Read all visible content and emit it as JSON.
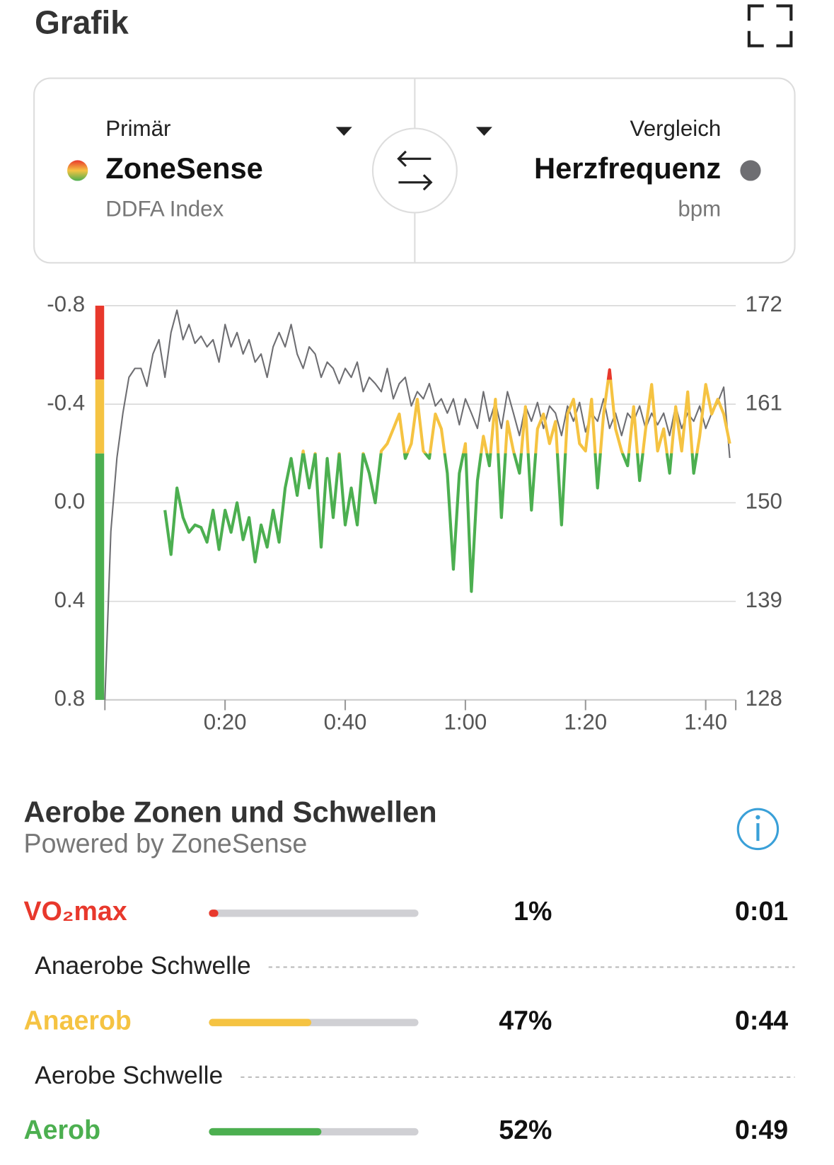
{
  "header": {
    "title": "Grafik"
  },
  "selector": {
    "primary_label": "Primär",
    "compare_label": "Vergleich"
  },
  "chart_data": {
    "type": "line",
    "series": [
      {
        "name": "ZoneSense",
        "unit": "DDFA Index",
        "x": [
          10,
          11,
          12,
          13,
          14,
          15,
          16,
          17,
          18,
          19,
          20,
          21,
          22,
          23,
          24,
          25,
          26,
          27,
          28,
          29,
          30,
          31,
          32,
          33,
          34,
          35,
          36,
          37,
          38,
          39,
          40,
          41,
          42,
          43,
          44,
          45,
          46,
          47,
          48,
          49,
          50,
          51,
          52,
          53,
          54,
          55,
          56,
          57,
          58,
          59,
          60,
          61,
          62,
          63,
          64,
          65,
          66,
          67,
          68,
          69,
          70,
          71,
          72,
          73,
          74,
          75,
          76,
          77,
          78,
          79,
          80,
          81,
          82,
          83,
          84,
          85,
          86,
          87,
          88,
          89,
          90,
          91,
          92,
          93,
          94,
          95,
          96,
          97,
          98,
          99,
          100,
          101,
          102,
          103,
          104
        ],
        "values": [
          0.03,
          0.21,
          -0.06,
          0.06,
          0.12,
          0.09,
          0.1,
          0.16,
          0.03,
          0.19,
          0.03,
          0.12,
          0.0,
          0.15,
          0.06,
          0.24,
          0.09,
          0.18,
          0.03,
          0.16,
          -0.06,
          -0.18,
          -0.03,
          -0.21,
          -0.06,
          -0.2,
          0.18,
          -0.18,
          0.06,
          -0.2,
          0.09,
          -0.06,
          0.09,
          -0.2,
          -0.12,
          0.0,
          -0.21,
          -0.24,
          -0.3,
          -0.36,
          -0.18,
          -0.24,
          -0.42,
          -0.21,
          -0.18,
          -0.36,
          -0.3,
          -0.12,
          0.27,
          -0.12,
          -0.24,
          0.36,
          -0.09,
          -0.27,
          -0.15,
          -0.42,
          0.06,
          -0.33,
          -0.21,
          -0.12,
          -0.39,
          0.03,
          -0.3,
          -0.36,
          -0.24,
          -0.33,
          0.09,
          -0.36,
          -0.42,
          -0.24,
          -0.21,
          -0.42,
          -0.06,
          -0.36,
          -0.54,
          -0.3,
          -0.21,
          -0.15,
          -0.39,
          -0.09,
          -0.3,
          -0.48,
          -0.21,
          -0.3,
          -0.12,
          -0.39,
          -0.21,
          -0.45,
          -0.12,
          -0.27,
          -0.48,
          -0.36,
          -0.42,
          -0.36,
          -0.24
        ]
      },
      {
        "name": "Herzfrequenz",
        "unit": "bpm",
        "color": "#6e6e72",
        "axis": "y2",
        "x": [
          0,
          1,
          2,
          3,
          4,
          5,
          6,
          7,
          8,
          9,
          10,
          11,
          12,
          13,
          14,
          15,
          16,
          17,
          18,
          19,
          20,
          21,
          22,
          23,
          24,
          25,
          26,
          27,
          28,
          29,
          30,
          31,
          32,
          33,
          34,
          35,
          36,
          37,
          38,
          39,
          40,
          41,
          42,
          43,
          44,
          45,
          46,
          47,
          48,
          49,
          50,
          51,
          52,
          53,
          54,
          55,
          56,
          57,
          58,
          59,
          60,
          61,
          62,
          63,
          64,
          65,
          66,
          67,
          68,
          69,
          70,
          71,
          72,
          73,
          74,
          75,
          76,
          77,
          78,
          79,
          80,
          81,
          82,
          83,
          84,
          85,
          86,
          87,
          88,
          89,
          90,
          91,
          92,
          93,
          94,
          95,
          96,
          97,
          98,
          99,
          100,
          101,
          102,
          103,
          104
        ],
        "values": [
          128,
          146.8,
          155,
          160,
          164,
          165,
          165,
          163,
          166.6,
          168.2,
          164,
          169,
          171.5,
          168.2,
          169.9,
          167.8,
          168.6,
          167.4,
          168.2,
          165.7,
          169.9,
          167.4,
          169,
          166.6,
          168.2,
          165.7,
          166.6,
          164,
          167.4,
          169,
          167.4,
          169.9,
          166.6,
          165,
          167.4,
          166.6,
          164,
          165.7,
          165,
          163.3,
          165,
          164,
          165.7,
          162.4,
          164,
          163.3,
          162.4,
          165,
          161.6,
          163.3,
          164,
          160.8,
          162.4,
          161.6,
          163.3,
          160.8,
          161.6,
          160,
          161.6,
          158.7,
          161.6,
          160,
          158.3,
          162.4,
          159.1,
          161.2,
          158.3,
          162.4,
          160,
          157.5,
          160.8,
          159.1,
          161.2,
          158.3,
          160.8,
          160,
          157.5,
          160.8,
          159.1,
          161.2,
          157.9,
          160,
          159.1,
          161.6,
          158.3,
          160,
          157.5,
          160,
          159.1,
          160.8,
          158.3,
          160,
          158.7,
          160,
          157.5,
          160.8,
          158.3,
          160,
          159.1,
          160.8,
          158.3,
          160,
          161.2,
          162.9,
          155
        ]
      }
    ],
    "zone_bounds": [
      -0.8,
      -0.5,
      -0.2,
      0.8
    ],
    "zone_colors": [
      "#e8382c",
      "#f5c342",
      "#4caf50"
    ],
    "xlim": [
      0,
      105
    ],
    "xticks": [
      {
        "value": 20,
        "label": "0:20"
      },
      {
        "value": 40,
        "label": "0:40"
      },
      {
        "value": 60,
        "label": "1:00"
      },
      {
        "value": 80,
        "label": "1:20"
      },
      {
        "value": 100,
        "label": "1:40"
      }
    ],
    "ylim": [
      0.8,
      -0.8
    ],
    "yticks": [
      0.8,
      0.4,
      {
        "value": 0,
        "label": "0.0"
      },
      -0.4,
      -0.8
    ],
    "y2lim": [
      128,
      172
    ],
    "y2ticks": [
      128,
      139,
      150,
      161,
      172
    ],
    "grid": true
  },
  "zones_section": {
    "title": "Aerobe Zonen und Schwellen",
    "subtitle": "Powered by ZoneSense",
    "zones": [
      {
        "name": "VO₂max",
        "color": "#e8382c",
        "percent": 1,
        "percent_label": "1%",
        "duration": "0:01"
      },
      {
        "name": "Anaerob",
        "color": "#f5c342",
        "percent": 47,
        "percent_label": "47%",
        "duration": "0:44"
      },
      {
        "name": "Aerob",
        "color": "#4caf50",
        "percent": 52,
        "percent_label": "52%",
        "duration": "0:49"
      }
    ],
    "thresholds": [
      "Anaerobe Schwelle",
      "Aerobe Schwelle"
    ]
  }
}
